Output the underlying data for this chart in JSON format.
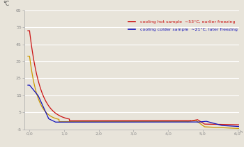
{
  "title_ylabel": "°C",
  "xlim": [
    -0.15,
    6.05
  ],
  "ylim": [
    -5,
    65
  ],
  "yticks": [
    -5,
    5,
    15,
    25,
    35,
    45,
    55,
    65
  ],
  "xticks": [
    0.0,
    1.0,
    2.0,
    3.0,
    4.0,
    5.0,
    6.0
  ],
  "xtick_labels": [
    "0,0",
    "1,0",
    "2,0",
    "3,0",
    "4,0",
    "5,0",
    "6,0"
  ],
  "ytick_labels": [
    "-5",
    "5",
    "15",
    "25",
    "35",
    "45",
    "55",
    "65"
  ],
  "bg_color": "#e8e4da",
  "grid_color": "#ffffff",
  "legend_red_text": " cooling hot sample  ∼53°C, earlier freezing",
  "legend_blue_text": " cooling colder sample  ∼21°C, later freezing",
  "red_color": "#cc1111",
  "blue_color": "#1111bb",
  "yellow_color": "#cc9900",
  "tick_color": "#888888",
  "spine_color": "#aaaaaa"
}
